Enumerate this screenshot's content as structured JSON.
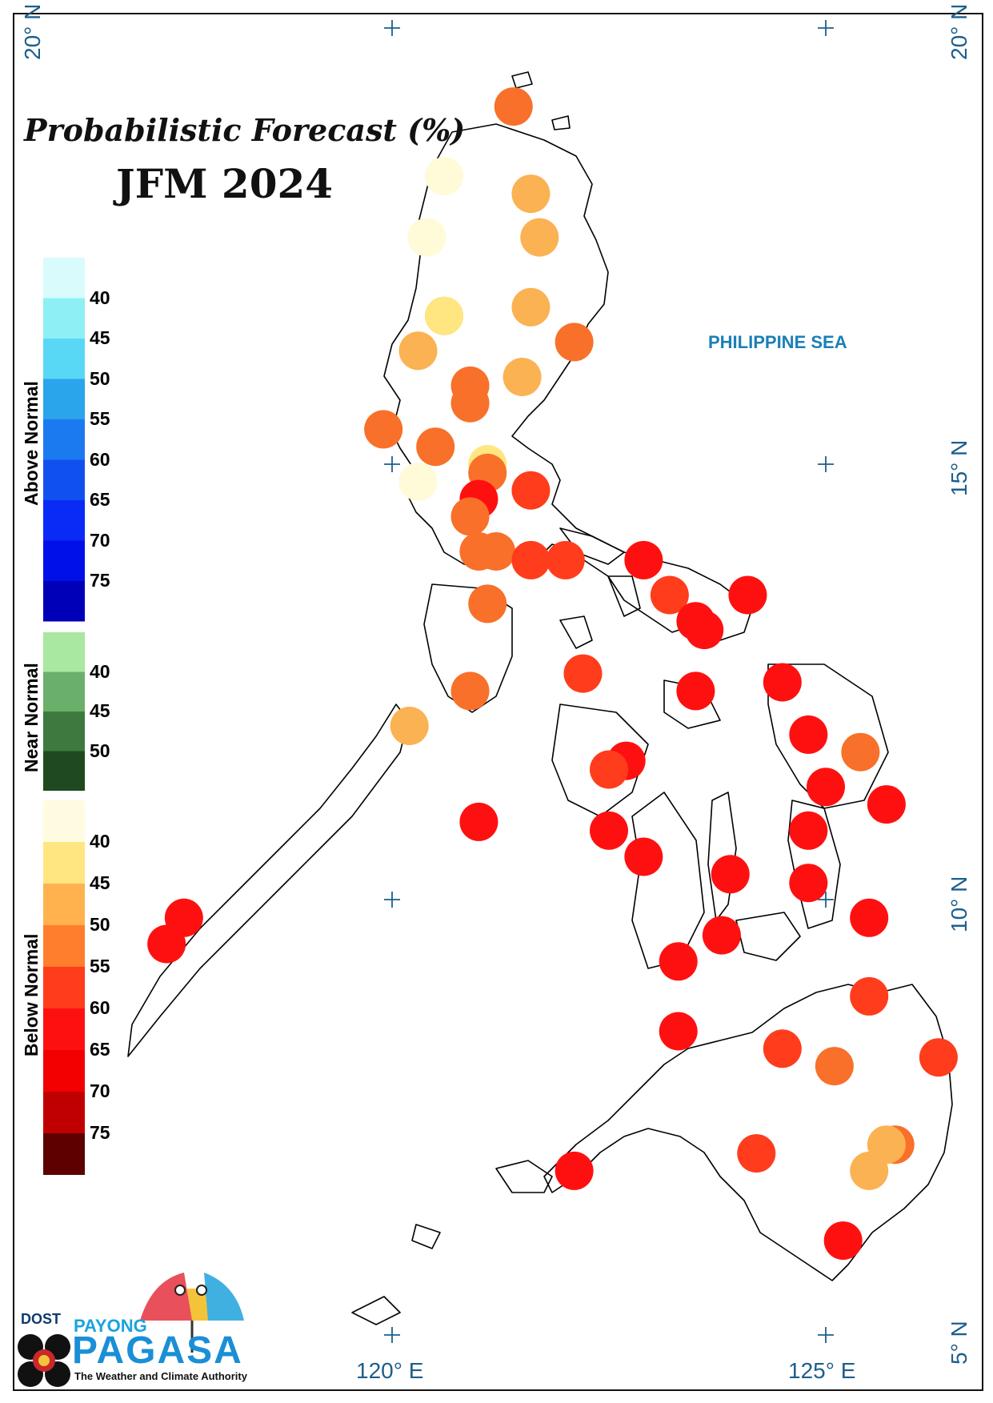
{
  "title": "Probabilistic Forecast (%)",
  "period": "JFM 2024",
  "sea_label": "PHILIPPINE SEA",
  "coords": {
    "lat20_left": "20° N",
    "lat20_right": "20° N",
    "lat15": "15° N",
    "lat10": "10° N",
    "lat5": "5° N",
    "lon120": "120° E",
    "lon125": "125° E"
  },
  "legend": {
    "above": {
      "title": "Above Normal",
      "labels": [
        "40",
        "45",
        "50",
        "55",
        "60",
        "65",
        "70",
        "75"
      ],
      "colors": [
        "#d9fbfb",
        "#8ef0f4",
        "#58d8f4",
        "#2aa4ea",
        "#1c7af0",
        "#1150f0",
        "#0a2af6",
        "#0010e8",
        "#0000b8"
      ]
    },
    "near": {
      "title": "Near Normal",
      "labels": [
        "40",
        "45",
        "50"
      ],
      "colors": [
        "#a8e8a0",
        "#6ab06a",
        "#3e7a40",
        "#1f4a1f"
      ]
    },
    "below": {
      "title": "Below Normal",
      "labels": [
        "40",
        "45",
        "50",
        "55",
        "60",
        "65",
        "70",
        "75"
      ],
      "colors": [
        "#fffbe0",
        "#ffe680",
        "#ffb24e",
        "#ff7e2e",
        "#ff3c1c",
        "#ff1010",
        "#f20000",
        "#c00000",
        "#5e0000"
      ]
    }
  },
  "stations": [
    {
      "lon": 121.4,
      "lat": 19.1,
      "c": "#f8702a"
    },
    {
      "lon": 120.6,
      "lat": 18.3,
      "c": "#fffad8"
    },
    {
      "lon": 121.6,
      "lat": 18.1,
      "c": "#fbb252"
    },
    {
      "lon": 120.4,
      "lat": 17.6,
      "c": "#fffad8"
    },
    {
      "lon": 121.7,
      "lat": 17.6,
      "c": "#fbb252"
    },
    {
      "lon": 121.6,
      "lat": 16.8,
      "c": "#fbb252"
    },
    {
      "lon": 120.6,
      "lat": 16.7,
      "c": "#fbb252"
    },
    {
      "lon": 120.6,
      "lat": 16.7,
      "c": "#ffe680"
    },
    {
      "lon": 122.1,
      "lat": 16.4,
      "c": "#f8702a"
    },
    {
      "lon": 120.3,
      "lat": 16.3,
      "c": "#fbb252"
    },
    {
      "lon": 121.5,
      "lat": 16.0,
      "c": "#fbb252"
    },
    {
      "lon": 120.9,
      "lat": 15.9,
      "c": "#f8702a"
    },
    {
      "lon": 120.9,
      "lat": 15.7,
      "c": "#f8702a"
    },
    {
      "lon": 119.9,
      "lat": 15.4,
      "c": "#f8702a"
    },
    {
      "lon": 120.5,
      "lat": 15.2,
      "c": "#f8702a"
    },
    {
      "lon": 121.1,
      "lat": 15.0,
      "c": "#ffe680"
    },
    {
      "lon": 121.1,
      "lat": 14.9,
      "c": "#f8702a"
    },
    {
      "lon": 120.3,
      "lat": 14.8,
      "c": "#fffad8"
    },
    {
      "lon": 121.6,
      "lat": 14.7,
      "c": "#ff3c1c"
    },
    {
      "lon": 121.0,
      "lat": 14.6,
      "c": "#ff1010"
    },
    {
      "lon": 120.9,
      "lat": 14.4,
      "c": "#f8702a"
    },
    {
      "lon": 121.0,
      "lat": 14.0,
      "c": "#f8702a"
    },
    {
      "lon": 121.2,
      "lat": 14.0,
      "c": "#f8702a"
    },
    {
      "lon": 121.6,
      "lat": 13.9,
      "c": "#ff3c1c"
    },
    {
      "lon": 122.0,
      "lat": 13.9,
      "c": "#ff3c1c"
    },
    {
      "lon": 122.9,
      "lat": 13.9,
      "c": "#ff1010"
    },
    {
      "lon": 121.1,
      "lat": 13.4,
      "c": "#f8702a"
    },
    {
      "lon": 123.2,
      "lat": 13.5,
      "c": "#ff3c1c"
    },
    {
      "lon": 124.1,
      "lat": 13.5,
      "c": "#ff1010"
    },
    {
      "lon": 123.5,
      "lat": 13.2,
      "c": "#ff1010"
    },
    {
      "lon": 123.6,
      "lat": 13.1,
      "c": "#ff1010"
    },
    {
      "lon": 122.2,
      "lat": 12.6,
      "c": "#ff3c1c"
    },
    {
      "lon": 120.9,
      "lat": 12.4,
      "c": "#f8702a"
    },
    {
      "lon": 123.5,
      "lat": 12.4,
      "c": "#ff1010"
    },
    {
      "lon": 124.5,
      "lat": 12.5,
      "c": "#ff1010"
    },
    {
      "lon": 120.2,
      "lat": 12.0,
      "c": "#fbb252"
    },
    {
      "lon": 124.8,
      "lat": 11.9,
      "c": "#ff1010"
    },
    {
      "lon": 125.4,
      "lat": 11.7,
      "c": "#f8702a"
    },
    {
      "lon": 122.7,
      "lat": 11.6,
      "c": "#ff1010"
    },
    {
      "lon": 122.5,
      "lat": 11.5,
      "c": "#ff3c1c"
    },
    {
      "lon": 125.0,
      "lat": 11.3,
      "c": "#ff1010"
    },
    {
      "lon": 125.7,
      "lat": 11.1,
      "c": "#ff1010"
    },
    {
      "lon": 121.0,
      "lat": 10.9,
      "c": "#ff1010"
    },
    {
      "lon": 122.5,
      "lat": 10.8,
      "c": "#ff1010"
    },
    {
      "lon": 124.8,
      "lat": 10.8,
      "c": "#ff1010"
    },
    {
      "lon": 122.9,
      "lat": 10.5,
      "c": "#ff1010"
    },
    {
      "lon": 123.9,
      "lat": 10.3,
      "c": "#ff1010"
    },
    {
      "lon": 124.8,
      "lat": 10.2,
      "c": "#ff1010"
    },
    {
      "lon": 117.6,
      "lat": 9.8,
      "c": "#ff1010"
    },
    {
      "lon": 125.5,
      "lat": 9.8,
      "c": "#ff1010"
    },
    {
      "lon": 123.8,
      "lat": 9.6,
      "c": "#ff1010"
    },
    {
      "lon": 117.4,
      "lat": 9.5,
      "c": "#ff1010"
    },
    {
      "lon": 123.3,
      "lat": 9.3,
      "c": "#ff1010"
    },
    {
      "lon": 125.5,
      "lat": 8.9,
      "c": "#ff3c1c"
    },
    {
      "lon": 123.3,
      "lat": 8.5,
      "c": "#ff1010"
    },
    {
      "lon": 124.5,
      "lat": 8.3,
      "c": "#ff3c1c"
    },
    {
      "lon": 126.3,
      "lat": 8.2,
      "c": "#ff3c1c"
    },
    {
      "lon": 125.1,
      "lat": 8.1,
      "c": "#f8702a"
    },
    {
      "lon": 124.2,
      "lat": 7.1,
      "c": "#ff3c1c"
    },
    {
      "lon": 125.8,
      "lat": 7.2,
      "c": "#f8702a"
    },
    {
      "lon": 125.7,
      "lat": 7.2,
      "c": "#fbb252"
    },
    {
      "lon": 125.5,
      "lat": 6.9,
      "c": "#fbb252"
    },
    {
      "lon": 122.1,
      "lat": 6.9,
      "c": "#ff1010"
    },
    {
      "lon": 125.2,
      "lat": 6.1,
      "c": "#ff1010"
    }
  ]
}
